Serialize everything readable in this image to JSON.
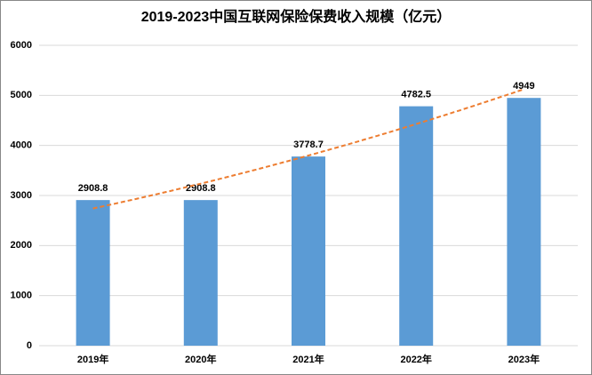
{
  "chart_data": {
    "type": "bar",
    "title": "2019-2023中国互联网保险保费收入规模（亿元）",
    "categories": [
      "2019年",
      "2020年",
      "2021年",
      "2022年",
      "2023年"
    ],
    "values": [
      2908.8,
      2908.8,
      3778.7,
      4782.5,
      4949
    ],
    "color": "#5b9bd5",
    "ylim": [
      0,
      6000
    ],
    "yticks": [
      0,
      1000,
      2000,
      3000,
      4000,
      5000,
      6000
    ],
    "grid": true,
    "trendline_color": "#ed7d31"
  }
}
